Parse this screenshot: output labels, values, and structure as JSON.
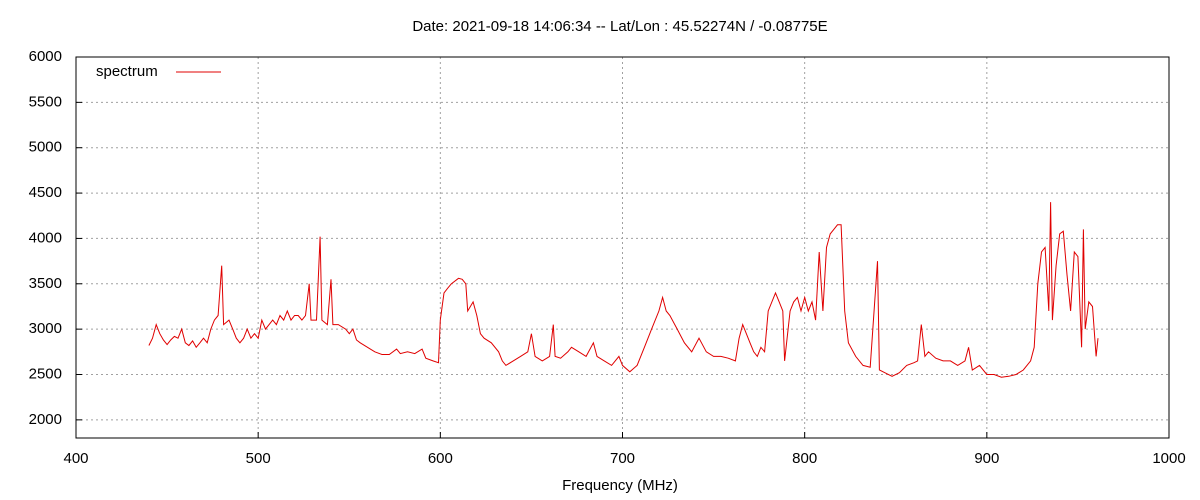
{
  "chart_data": {
    "type": "line",
    "title": "Date: 2021-09-18 14:06:34  --  Lat/Lon : 45.52274N / -0.08775E",
    "x_label": "Frequency (MHz)",
    "legend": "top left",
    "grid": true,
    "xlim": [
      400,
      1000
    ],
    "xticks": [
      400,
      500,
      600,
      700,
      800,
      900,
      1000
    ],
    "ylim": [
      1800,
      6000
    ],
    "yticks": [
      2000,
      2500,
      3000,
      3500,
      4000,
      4500,
      5000,
      5500,
      6000
    ],
    "x": [
      440,
      442,
      444,
      446,
      448,
      450,
      452,
      454,
      456,
      458,
      460,
      462,
      464,
      466,
      468,
      470,
      472,
      474,
      476,
      478,
      480,
      481,
      484,
      486,
      488,
      490,
      492,
      494,
      496,
      498,
      500,
      502,
      504,
      506,
      508,
      510,
      512,
      514,
      516,
      518,
      520,
      522,
      524,
      526,
      528,
      529,
      530,
      532,
      534,
      535,
      538,
      540,
      541,
      544,
      548,
      550,
      552,
      554,
      556,
      560,
      564,
      568,
      572,
      576,
      578,
      582,
      586,
      590,
      592,
      596,
      599,
      600,
      602,
      604,
      606,
      610,
      612,
      614,
      615,
      618,
      620,
      622,
      624,
      628,
      632,
      634,
      636,
      640,
      644,
      648,
      650,
      652,
      656,
      660,
      662,
      663,
      666,
      670,
      672,
      676,
      680,
      684,
      686,
      690,
      694,
      698,
      700,
      704,
      708,
      712,
      716,
      720,
      722,
      724,
      726,
      730,
      734,
      738,
      742,
      746,
      750,
      754,
      758,
      762,
      764,
      766,
      770,
      772,
      774,
      776,
      778,
      780,
      784,
      786,
      788,
      789,
      792,
      794,
      796,
      798,
      800,
      802,
      804,
      806,
      808,
      810,
      812,
      814,
      816,
      818,
      820,
      822,
      824,
      828,
      832,
      836,
      840,
      841,
      844,
      848,
      852,
      856,
      860,
      862,
      864,
      866,
      868,
      872,
      876,
      880,
      884,
      888,
      890,
      892,
      896,
      900,
      904,
      908,
      912,
      916,
      920,
      924,
      926,
      928,
      930,
      932,
      934,
      935,
      936,
      938,
      940,
      942,
      944,
      946,
      948,
      950,
      952,
      953,
      954,
      956,
      958,
      960,
      961
    ],
    "series": [
      {
        "name": "spectrum",
        "color": "#e00000",
        "values": [
          2820,
          2900,
          3050,
          2950,
          2880,
          2830,
          2880,
          2920,
          2900,
          3000,
          2850,
          2820,
          2870,
          2800,
          2850,
          2900,
          2850,
          3000,
          3100,
          3150,
          3700,
          3050,
          3100,
          3000,
          2900,
          2850,
          2900,
          3000,
          2900,
          2950,
          2900,
          3100,
          3000,
          3050,
          3100,
          3050,
          3150,
          3100,
          3200,
          3100,
          3150,
          3150,
          3100,
          3150,
          3500,
          3100,
          3100,
          3100,
          4020,
          3100,
          3050,
          3550,
          3050,
          3050,
          3000,
          2950,
          3000,
          2880,
          2850,
          2800,
          2750,
          2720,
          2720,
          2780,
          2730,
          2750,
          2730,
          2780,
          2680,
          2650,
          2630,
          3100,
          3400,
          3450,
          3500,
          3560,
          3550,
          3500,
          3200,
          3300,
          3150,
          2950,
          2900,
          2850,
          2750,
          2650,
          2600,
          2650,
          2700,
          2750,
          2950,
          2700,
          2650,
          2700,
          3050,
          2700,
          2680,
          2750,
          2800,
          2750,
          2700,
          2850,
          2700,
          2650,
          2600,
          2700,
          2600,
          2530,
          2600,
          2800,
          3000,
          3200,
          3350,
          3200,
          3150,
          3000,
          2850,
          2750,
          2900,
          2750,
          2700,
          2700,
          2680,
          2650,
          2900,
          3050,
          2850,
          2750,
          2700,
          2800,
          2750,
          3200,
          3400,
          3300,
          3200,
          2650,
          3200,
          3300,
          3350,
          3200,
          3350,
          3200,
          3300,
          3100,
          3850,
          3200,
          3900,
          4050,
          4100,
          4150,
          4150,
          3200,
          2850,
          2700,
          2600,
          2580,
          3750,
          2550,
          2520,
          2480,
          2520,
          2600,
          2630,
          2650,
          3050,
          2700,
          2750,
          2680,
          2650,
          2650,
          2600,
          2650,
          2800,
          2550,
          2600,
          2500,
          2500,
          2470,
          2480,
          2500,
          2550,
          2650,
          2800,
          3500,
          3850,
          3900,
          3200,
          4400,
          3100,
          3700,
          4050,
          4080,
          3600,
          3200,
          3850,
          3800,
          2800,
          4100,
          3000,
          3300,
          3250,
          2700,
          2900
        ]
      }
    ]
  }
}
